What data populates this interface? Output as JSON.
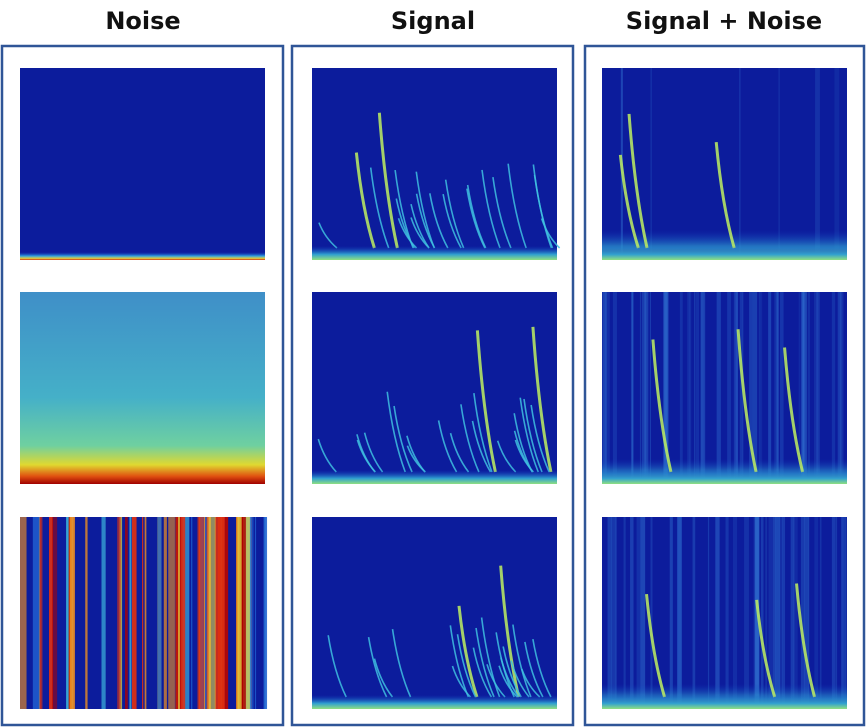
{
  "columns": [
    {
      "title": "Noise"
    },
    {
      "title": "Signal"
    },
    {
      "title": "Signal + Noise"
    }
  ]
}
